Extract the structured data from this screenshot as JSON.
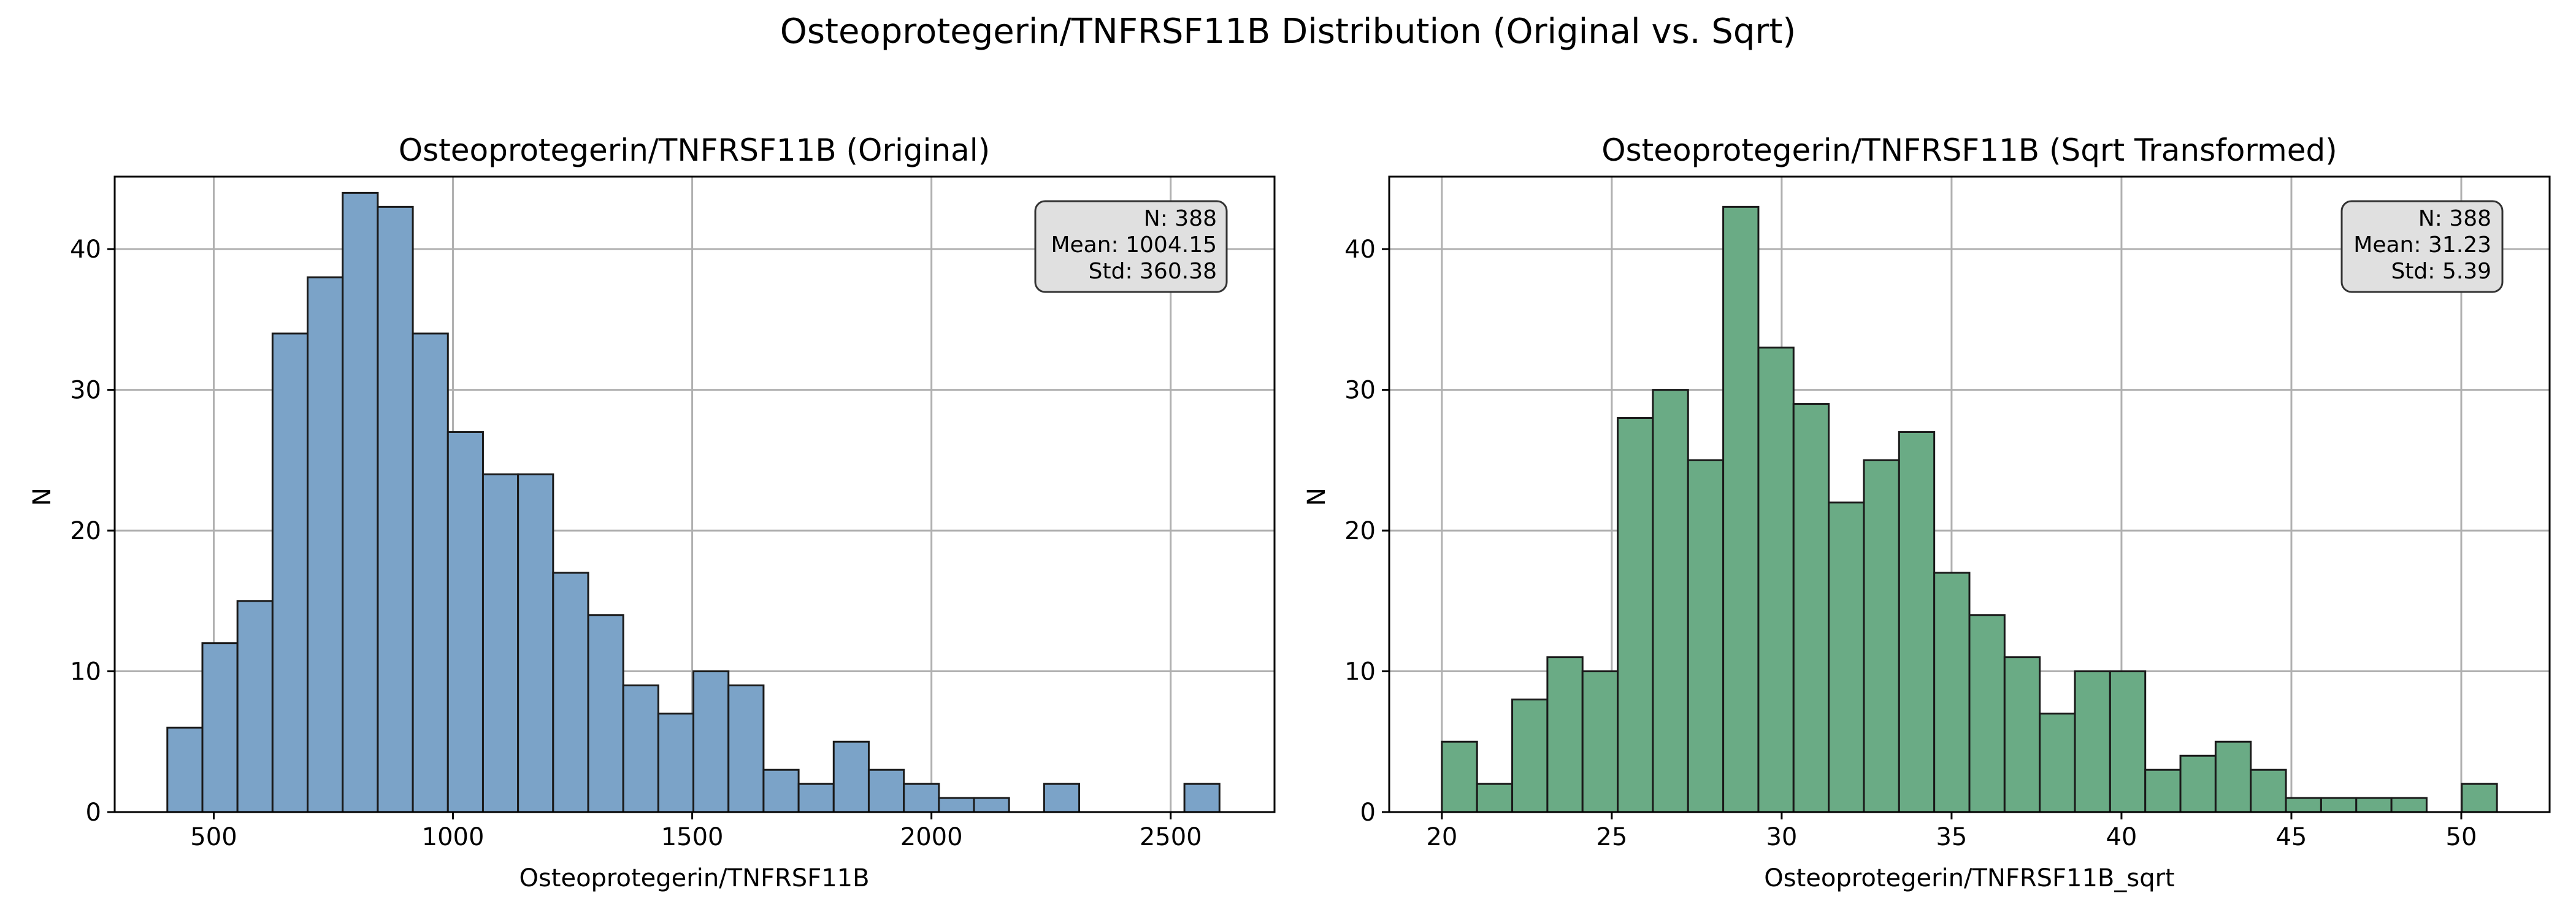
{
  "figure": {
    "suptitle": "Osteoprotegerin/TNFRSF11B Distribution (Original vs. Sqrt)"
  },
  "colors": {
    "original_bar": "#7ba3c8",
    "sqrt_bar": "#6aab85",
    "bar_edge": "#1a1a1a",
    "grid": "#b0b0b0",
    "stats_box": "#e0e0e0"
  },
  "chart_data": [
    {
      "type": "bar",
      "title": "Osteoprotegerin/TNFRSF11B (Original)",
      "xlabel": "Osteoprotegerin/TNFRSF11B",
      "ylabel": "N",
      "xlim": [
        293,
        2717
      ],
      "ylim": [
        0,
        45.15
      ],
      "xticks": [
        500,
        1000,
        1500,
        2000,
        2500
      ],
      "yticks": [
        0,
        10,
        20,
        30,
        40
      ],
      "grid": true,
      "bin_start": 403,
      "bin_width": 73.3,
      "counts": [
        6,
        12,
        15,
        34,
        38,
        44,
        43,
        34,
        27,
        24,
        24,
        17,
        14,
        9,
        7,
        10,
        9,
        3,
        2,
        5,
        3,
        2,
        1,
        1,
        0,
        2,
        0,
        0,
        0,
        2
      ],
      "stats": {
        "line1": "N: 388",
        "line2": "Mean: 1004.15",
        "line3": "Std: 360.38"
      }
    },
    {
      "type": "bar",
      "title": "Osteoprotegerin/TNFRSF11B (Sqrt Transformed)",
      "xlabel": "Osteoprotegerin/TNFRSF11B_sqrt",
      "ylabel": "N",
      "xlim": [
        18.45,
        52.6
      ],
      "ylim": [
        0,
        45.15
      ],
      "xticks": [
        20,
        25,
        30,
        35,
        40,
        45,
        50
      ],
      "yticks": [
        0,
        10,
        20,
        30,
        40
      ],
      "grid": true,
      "bin_start": 20.0,
      "bin_width": 1.035,
      "counts": [
        5,
        2,
        8,
        11,
        10,
        28,
        30,
        25,
        43,
        33,
        29,
        22,
        25,
        27,
        17,
        14,
        11,
        7,
        10,
        10,
        3,
        4,
        5,
        3,
        1,
        1,
        1,
        1,
        0,
        2
      ],
      "stats": {
        "line1": "N: 388",
        "line2": "Mean: 31.23",
        "line3": "Std: 5.39"
      }
    }
  ]
}
